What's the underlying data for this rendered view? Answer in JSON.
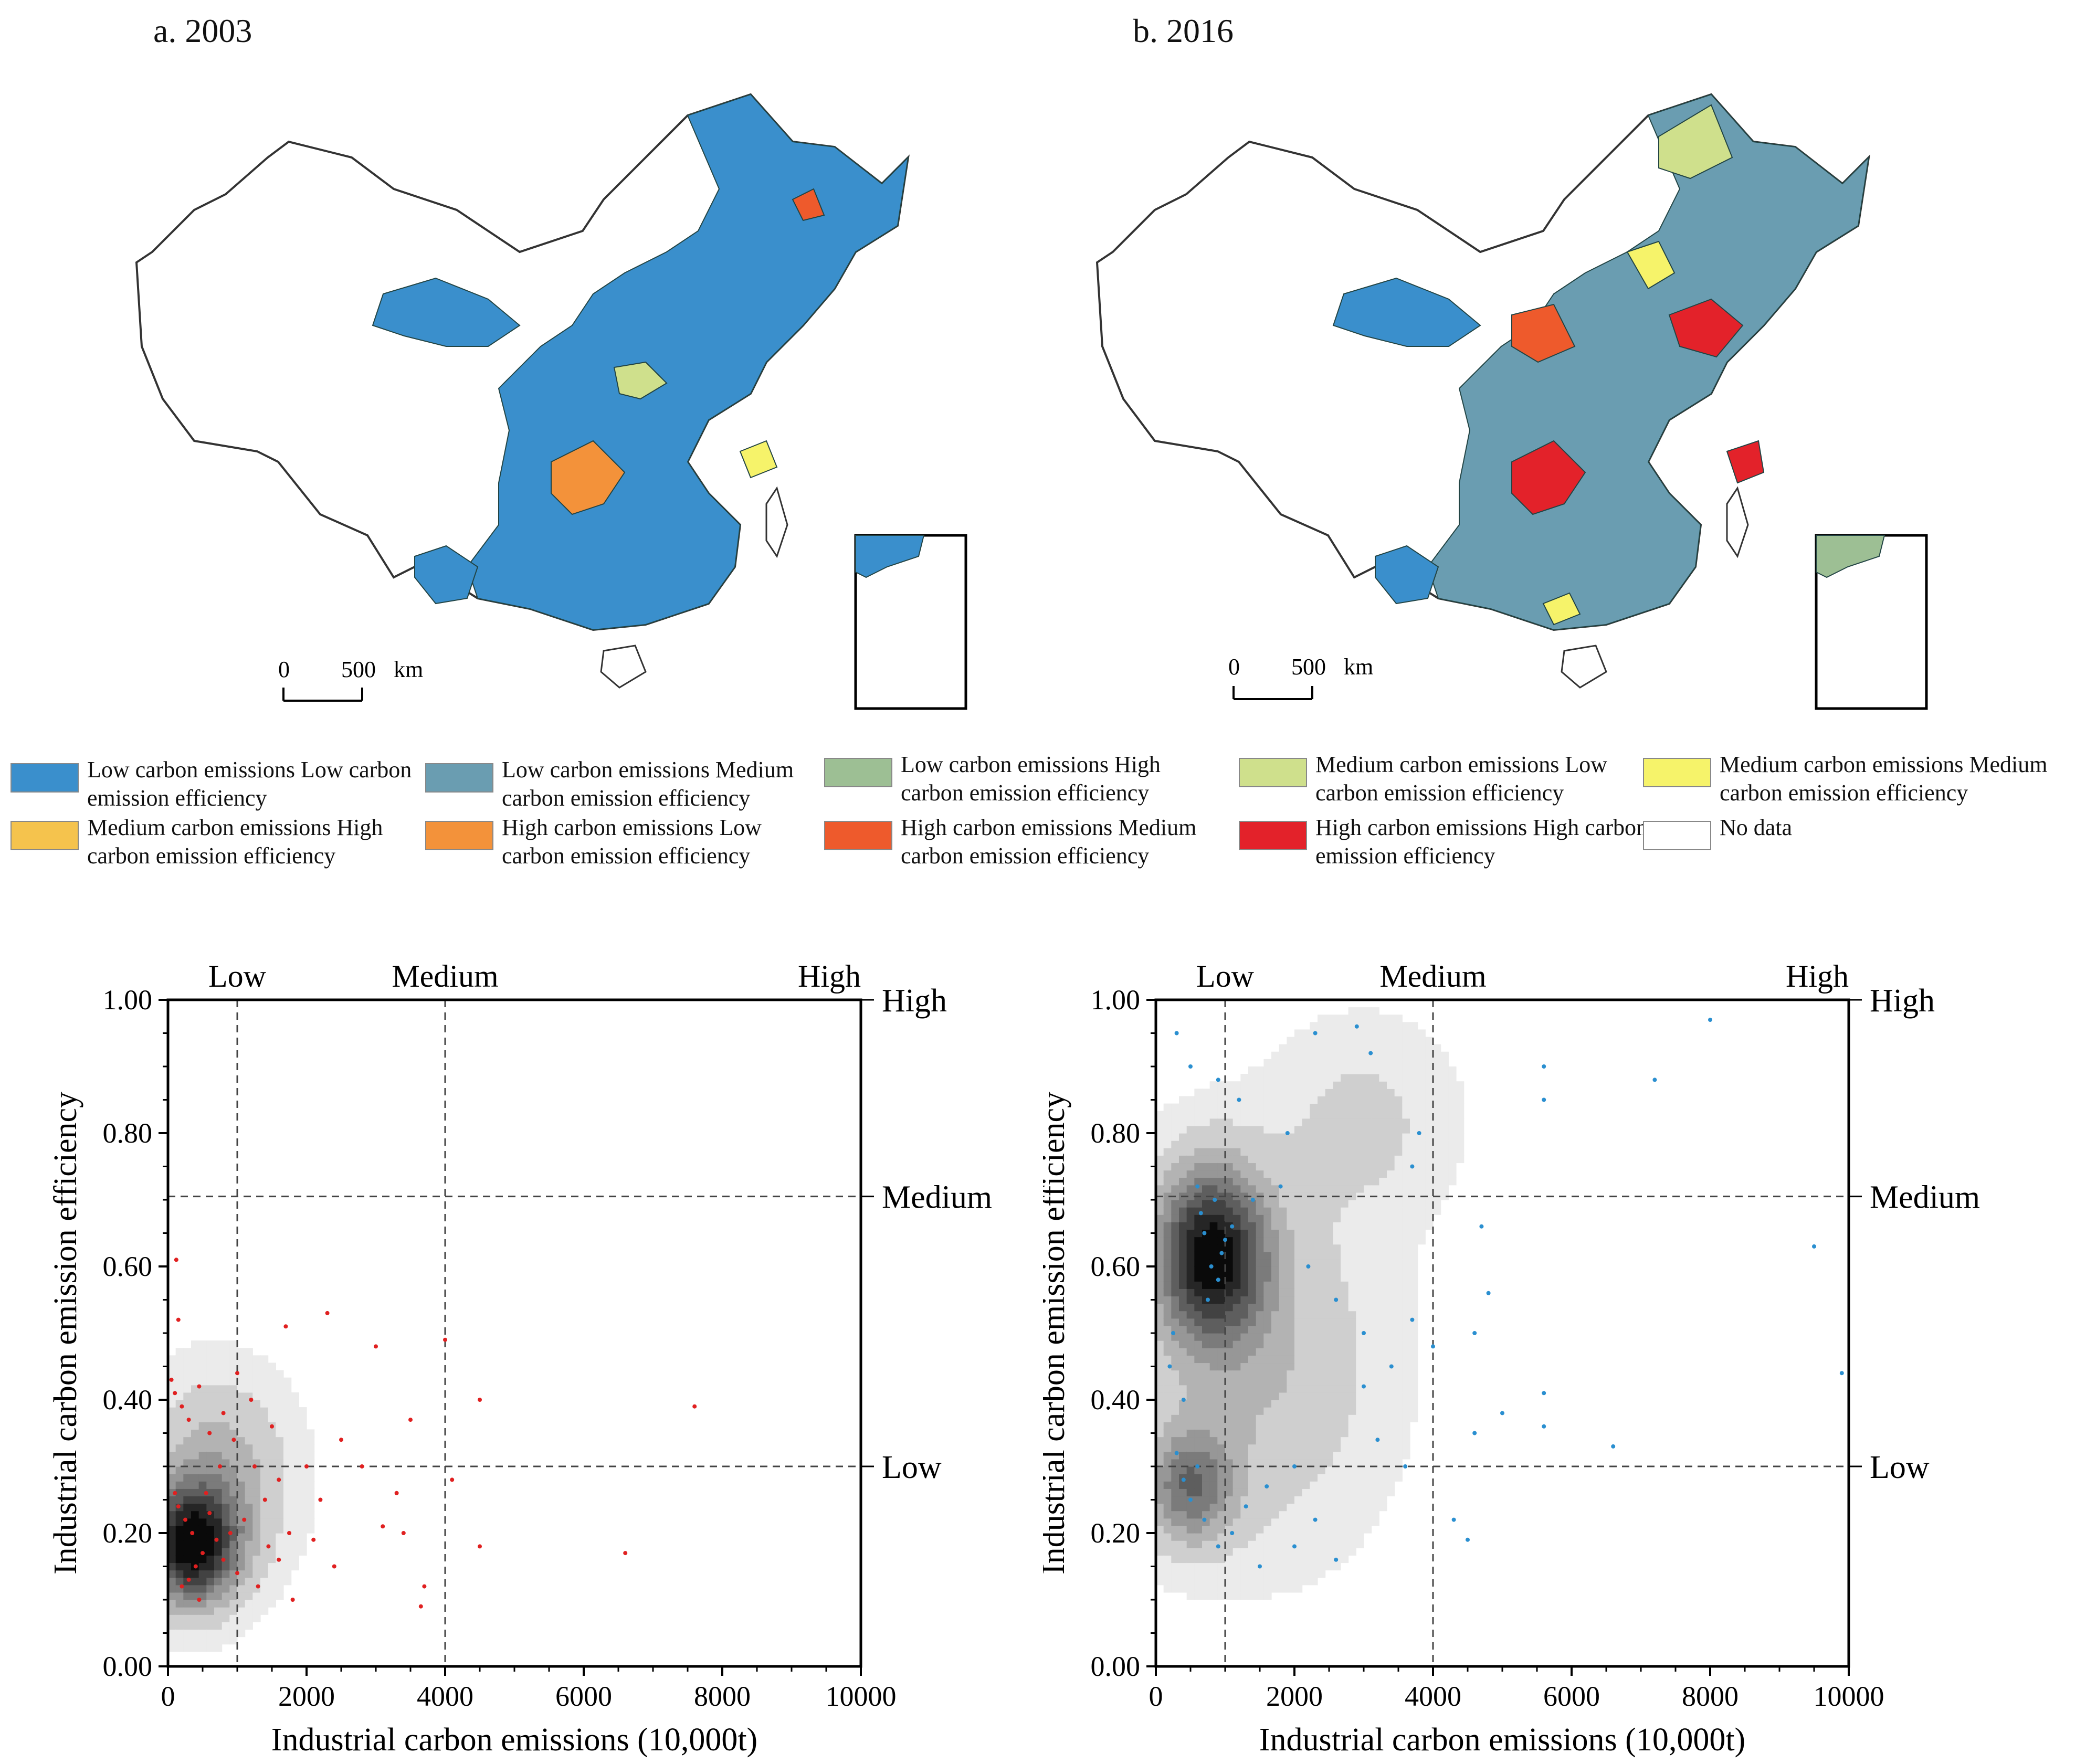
{
  "maps": [
    {
      "label": "a. 2003",
      "scale_label": "0     500  km",
      "scale_zero": "0",
      "scale_max": "500",
      "scale_unit": "km"
    },
    {
      "label": "b. 2016",
      "scale_label": "0     500  km",
      "scale_zero": "0",
      "scale_max": "500",
      "scale_unit": "km"
    }
  ],
  "legend": [
    {
      "label": "Low carbon emissions Low carbon emission efficiency",
      "color": "#3a8fcc"
    },
    {
      "label": "Low carbon emissions Medium carbon emission efficiency",
      "color": "#6a9db1"
    },
    {
      "label": "Low carbon emissions High carbon emission efficiency",
      "color": "#9dbf94"
    },
    {
      "label": "Medium carbon emissions Low carbon emission efficiency",
      "color": "#cfe08c"
    },
    {
      "label": "Medium carbon emissions Medium carbon emission efficiency",
      "color": "#f6f36a"
    },
    {
      "label": "Medium carbon emissions High carbon emission efficiency",
      "color": "#f5c34d"
    },
    {
      "label": "High carbon emissions Low carbon emission efficiency",
      "color": "#f3923a"
    },
    {
      "label": "High carbon emissions Medium carbon emission efficiency",
      "color": "#ee5a2c"
    },
    {
      "label": "High carbon emissions High carbon emission efficiency",
      "color": "#e3222a"
    },
    {
      "label": "No data",
      "color": "#ffffff"
    }
  ],
  "chart_data": [
    {
      "type": "scatter",
      "title": "",
      "xlabel": "Industrial carbon emissions (10,000t)",
      "ylabel": "Industrial carbon emission efficiency",
      "xlim": [
        0,
        10000
      ],
      "ylim": [
        0,
        1
      ],
      "x_ticks": [
        "0",
        "2000",
        "4000",
        "6000",
        "8000",
        "10000"
      ],
      "y_ticks": [
        "0.00",
        "0.20",
        "0.40",
        "0.60",
        "0.80",
        "1.00"
      ],
      "x_thresholds": [
        1000,
        4000
      ],
      "y_thresholds": [
        0.3,
        0.705
      ],
      "top_labels": [
        "Low",
        "Medium",
        "High"
      ],
      "right_labels": [
        "High",
        "Medium",
        "Low"
      ],
      "point_color": "#e02020",
      "density_peaks": [
        {
          "x": 350,
          "y": 0.18,
          "sx": 450,
          "sy": 0.06,
          "w": 1.0
        },
        {
          "x": 700,
          "y": 0.28,
          "sx": 700,
          "sy": 0.1,
          "w": 0.35
        }
      ],
      "points": [
        [
          120,
          0.61
        ],
        [
          150,
          0.52
        ],
        [
          50,
          0.43
        ],
        [
          100,
          0.41
        ],
        [
          200,
          0.39
        ],
        [
          300,
          0.37
        ],
        [
          450,
          0.42
        ],
        [
          600,
          0.35
        ],
        [
          800,
          0.38
        ],
        [
          1000,
          0.44
        ],
        [
          1200,
          0.4
        ],
        [
          1500,
          0.36
        ],
        [
          1700,
          0.51
        ],
        [
          2300,
          0.53
        ],
        [
          3000,
          0.48
        ],
        [
          4000,
          0.49
        ],
        [
          4500,
          0.4
        ],
        [
          3500,
          0.37
        ],
        [
          2500,
          0.34
        ],
        [
          2000,
          0.3
        ],
        [
          1600,
          0.28
        ],
        [
          1400,
          0.25
        ],
        [
          1100,
          0.22
        ],
        [
          900,
          0.2
        ],
        [
          700,
          0.19
        ],
        [
          500,
          0.17
        ],
        [
          400,
          0.15
        ],
        [
          300,
          0.13
        ],
        [
          200,
          0.12
        ],
        [
          350,
          0.2
        ],
        [
          250,
          0.22
        ],
        [
          150,
          0.24
        ],
        [
          100,
          0.26
        ],
        [
          600,
          0.23
        ],
        [
          800,
          0.16
        ],
        [
          1000,
          0.14
        ],
        [
          1300,
          0.12
        ],
        [
          1600,
          0.16
        ],
        [
          1800,
          0.1
        ],
        [
          2100,
          0.19
        ],
        [
          2400,
          0.15
        ],
        [
          3100,
          0.21
        ],
        [
          3400,
          0.2
        ],
        [
          3700,
          0.12
        ],
        [
          3650,
          0.09
        ],
        [
          4500,
          0.18
        ],
        [
          4100,
          0.28
        ],
        [
          6600,
          0.17
        ],
        [
          7600,
          0.39
        ],
        [
          450,
          0.1
        ],
        [
          550,
          0.26
        ],
        [
          750,
          0.3
        ],
        [
          950,
          0.34
        ],
        [
          1250,
          0.3
        ],
        [
          1450,
          0.18
        ],
        [
          1750,
          0.2
        ],
        [
          2200,
          0.25
        ],
        [
          2800,
          0.3
        ],
        [
          3300,
          0.26
        ]
      ]
    },
    {
      "type": "scatter",
      "title": "",
      "xlabel": "Industrial carbon emissions (10,000t)",
      "ylabel": "Industrial carbon emission efficiency",
      "xlim": [
        0,
        10000
      ],
      "ylim": [
        0,
        1
      ],
      "x_ticks": [
        "0",
        "2000",
        "4000",
        "6000",
        "8000",
        "10000"
      ],
      "y_ticks": [
        "0.00",
        "0.20",
        "0.40",
        "0.60",
        "0.80",
        "1.00"
      ],
      "x_thresholds": [
        1000,
        4000
      ],
      "y_thresholds": [
        0.3,
        0.705
      ],
      "top_labels": [
        "Low",
        "Medium",
        "High"
      ],
      "right_labels": [
        "High",
        "Medium",
        "Low"
      ],
      "point_color": "#2a8fd0",
      "density_peaks": [
        {
          "x": 800,
          "y": 0.62,
          "sx": 550,
          "sy": 0.09,
          "w": 1.0
        },
        {
          "x": 500,
          "y": 0.27,
          "sx": 450,
          "sy": 0.06,
          "w": 0.55
        },
        {
          "x": 1500,
          "y": 0.45,
          "sx": 1200,
          "sy": 0.18,
          "w": 0.25
        },
        {
          "x": 3000,
          "y": 0.82,
          "sx": 900,
          "sy": 0.1,
          "w": 0.15
        }
      ],
      "points": [
        [
          300,
          0.95
        ],
        [
          500,
          0.9
        ],
        [
          900,
          0.88
        ],
        [
          1200,
          0.85
        ],
        [
          2300,
          0.95
        ],
        [
          2900,
          0.96
        ],
        [
          3100,
          0.92
        ],
        [
          5600,
          0.9
        ],
        [
          8000,
          0.97
        ],
        [
          7200,
          0.88
        ],
        [
          5600,
          0.85
        ],
        [
          600,
          0.72
        ],
        [
          700,
          0.65
        ],
        [
          800,
          0.6
        ],
        [
          900,
          0.58
        ],
        [
          1000,
          0.64
        ],
        [
          750,
          0.55
        ],
        [
          650,
          0.68
        ],
        [
          850,
          0.7
        ],
        [
          950,
          0.62
        ],
        [
          1100,
          0.66
        ],
        [
          1400,
          0.7
        ],
        [
          1800,
          0.72
        ],
        [
          2200,
          0.6
        ],
        [
          2600,
          0.55
        ],
        [
          3000,
          0.5
        ],
        [
          3400,
          0.45
        ],
        [
          3700,
          0.52
        ],
        [
          4000,
          0.48
        ],
        [
          4600,
          0.5
        ],
        [
          4700,
          0.66
        ],
        [
          4800,
          0.56
        ],
        [
          5000,
          0.38
        ],
        [
          4600,
          0.35
        ],
        [
          5600,
          0.41
        ],
        [
          5600,
          0.36
        ],
        [
          6600,
          0.33
        ],
        [
          9500,
          0.63
        ],
        [
          9900,
          0.44
        ],
        [
          400,
          0.28
        ],
        [
          500,
          0.25
        ],
        [
          600,
          0.3
        ],
        [
          300,
          0.32
        ],
        [
          700,
          0.22
        ],
        [
          900,
          0.18
        ],
        [
          1100,
          0.2
        ],
        [
          1300,
          0.24
        ],
        [
          1600,
          0.27
        ],
        [
          2000,
          0.3
        ],
        [
          2300,
          0.22
        ],
        [
          2600,
          0.16
        ],
        [
          3200,
          0.34
        ],
        [
          3600,
          0.3
        ],
        [
          4300,
          0.22
        ],
        [
          4500,
          0.19
        ],
        [
          200,
          0.45
        ],
        [
          250,
          0.5
        ],
        [
          400,
          0.4
        ],
        [
          1500,
          0.15
        ],
        [
          2000,
          0.18
        ],
        [
          3000,
          0.42
        ],
        [
          3800,
          0.8
        ],
        [
          3700,
          0.75
        ],
        [
          1900,
          0.8
        ]
      ]
    }
  ]
}
